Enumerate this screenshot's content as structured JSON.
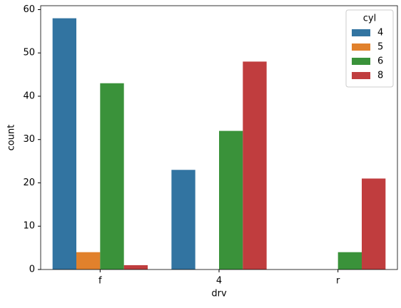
{
  "chart_data": {
    "type": "bar",
    "x_label": "drv",
    "y_label": "count",
    "categories": [
      "f",
      "4",
      "r"
    ],
    "legend_title": "cyl",
    "legend_position": "upper right",
    "series": [
      {
        "name": "4",
        "color": "#3274a1",
        "values": [
          58,
          23,
          0
        ]
      },
      {
        "name": "5",
        "color": "#e1812c",
        "values": [
          4,
          0,
          0
        ]
      },
      {
        "name": "6",
        "color": "#3a923a",
        "values": [
          43,
          32,
          4
        ]
      },
      {
        "name": "8",
        "color": "#c03d3e",
        "values": [
          1,
          48,
          21
        ]
      }
    ],
    "ylim": [
      0,
      60.9
    ],
    "yticks": [
      0,
      10,
      20,
      30,
      40,
      50,
      60
    ]
  }
}
